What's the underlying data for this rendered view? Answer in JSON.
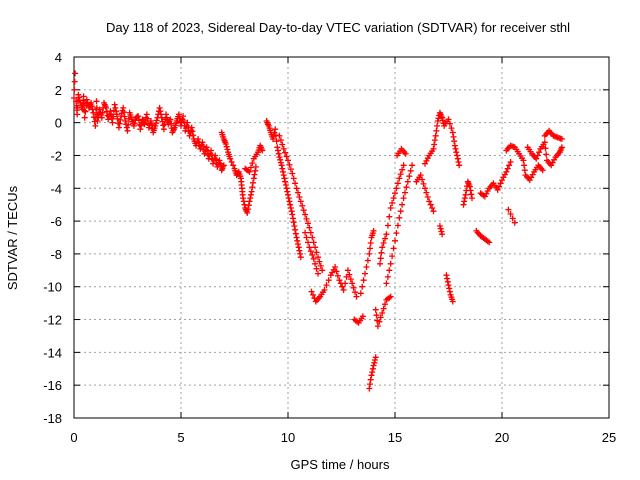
{
  "chart_data": {
    "type": "scatter",
    "title": "Day 118 of 2023, Sidereal Day-to-day VTEC variation (SDTVAR) for receiver sthl",
    "xlabel": "GPS time / hours",
    "ylabel": "SDTVAR / TECUs",
    "xlim": [
      0,
      25
    ],
    "ylim": [
      -18,
      4
    ],
    "xticks": [
      "0",
      "5",
      "10",
      "15",
      "20",
      "25"
    ],
    "yticks": [
      "4",
      "2",
      "0",
      "-2",
      "-4",
      "-6",
      "-8",
      "-10",
      "-12",
      "-14",
      "-16",
      "-18"
    ],
    "grid": true,
    "marker": "plus",
    "color": "#ff0000",
    "series": [
      {
        "name": "sthl",
        "points": [
          [
            0.0,
            1.5
          ],
          [
            0.05,
            3.0
          ],
          [
            0.1,
            1.3
          ],
          [
            0.15,
            0.5
          ],
          [
            0.2,
            1.7
          ],
          [
            0.3,
            1.2
          ],
          [
            0.4,
            0.8
          ],
          [
            0.45,
            1.6
          ],
          [
            0.5,
            0.3
          ],
          [
            0.6,
            1.4
          ],
          [
            0.7,
            0.9
          ],
          [
            0.8,
            1.2
          ],
          [
            0.9,
            0.6
          ],
          [
            1.0,
            -0.2
          ],
          [
            1.05,
            1.3
          ],
          [
            1.1,
            0.1
          ],
          [
            1.2,
            0.8
          ],
          [
            1.3,
            0.3
          ],
          [
            1.4,
            1.2
          ],
          [
            1.5,
            0.9
          ],
          [
            1.6,
            0.2
          ],
          [
            1.7,
            0.7
          ],
          [
            1.8,
            0.0
          ],
          [
            1.9,
            1.1
          ],
          [
            2.0,
            0.5
          ],
          [
            2.1,
            -0.3
          ],
          [
            2.2,
            0.4
          ],
          [
            2.3,
            0.9
          ],
          [
            2.4,
            0.1
          ],
          [
            2.5,
            -0.5
          ],
          [
            2.6,
            0.6
          ],
          [
            2.7,
            0.2
          ],
          [
            2.8,
            -0.2
          ],
          [
            2.9,
            0.3
          ],
          [
            3.0,
            0.4
          ],
          [
            3.1,
            -0.4
          ],
          [
            3.2,
            0.2
          ],
          [
            3.3,
            -0.1
          ],
          [
            3.4,
            0.5
          ],
          [
            3.5,
            -0.3
          ],
          [
            3.6,
            0.1
          ],
          [
            3.7,
            -0.6
          ],
          [
            3.8,
            -0.2
          ],
          [
            3.9,
            0.3
          ],
          [
            4.0,
            0.9
          ],
          [
            4.1,
            0.3
          ],
          [
            4.2,
            -0.4
          ],
          [
            4.3,
            0.5
          ],
          [
            4.4,
            -0.1
          ],
          [
            4.5,
            0.2
          ],
          [
            4.6,
            -0.6
          ],
          [
            4.7,
            -0.3
          ],
          [
            4.8,
            0.1
          ],
          [
            4.9,
            0.5
          ],
          [
            5.0,
            -0.2
          ],
          [
            5.1,
            0.4
          ],
          [
            5.2,
            -0.5
          ],
          [
            5.3,
            0.0
          ],
          [
            5.4,
            -0.8
          ],
          [
            5.5,
            -0.3
          ],
          [
            5.6,
            -1.0
          ],
          [
            5.7,
            -1.4
          ],
          [
            5.8,
            -1.0
          ],
          [
            5.9,
            -1.6
          ],
          [
            6.0,
            -1.2
          ],
          [
            6.1,
            -1.9
          ],
          [
            6.2,
            -1.5
          ],
          [
            6.3,
            -2.2
          ],
          [
            6.4,
            -1.7
          ],
          [
            6.5,
            -2.5
          ],
          [
            6.6,
            -2.0
          ],
          [
            6.7,
            -2.7
          ],
          [
            6.8,
            -2.3
          ],
          [
            6.9,
            -2.9
          ],
          [
            7.0,
            -2.6
          ],
          [
            6.9,
            -0.6
          ],
          [
            7.0,
            -1.0
          ],
          [
            7.1,
            -1.3
          ],
          [
            7.2,
            -1.8
          ],
          [
            7.3,
            -2.2
          ],
          [
            7.5,
            -2.8
          ],
          [
            7.6,
            -3.2
          ],
          [
            7.7,
            -3.0
          ],
          [
            7.8,
            -3.4
          ],
          [
            7.85,
            -4.0
          ],
          [
            7.9,
            -4.6
          ],
          [
            8.0,
            -5.2
          ],
          [
            8.1,
            -5.5
          ],
          [
            8.2,
            -4.8
          ],
          [
            8.3,
            -4.2
          ],
          [
            8.4,
            -3.4
          ],
          [
            8.5,
            -2.7
          ],
          [
            8.0,
            -2.8
          ],
          [
            8.2,
            -3.0
          ],
          [
            8.4,
            -2.2
          ],
          [
            8.6,
            -1.8
          ],
          [
            8.7,
            -1.4
          ],
          [
            8.8,
            -1.7
          ],
          [
            9.0,
            0.1
          ],
          [
            9.1,
            -0.2
          ],
          [
            9.2,
            -0.6
          ],
          [
            9.3,
            -1.0
          ],
          [
            9.4,
            -0.4
          ],
          [
            9.5,
            -1.5
          ],
          [
            9.6,
            -2.1
          ],
          [
            9.7,
            -2.6
          ],
          [
            9.8,
            -3.2
          ],
          [
            9.9,
            -3.8
          ],
          [
            10.0,
            -4.4
          ],
          [
            10.1,
            -5.0
          ],
          [
            10.2,
            -5.6
          ],
          [
            10.3,
            -6.3
          ],
          [
            10.4,
            -7.0
          ],
          [
            10.5,
            -7.6
          ],
          [
            10.6,
            -8.2
          ],
          [
            9.6,
            -0.8
          ],
          [
            9.8,
            -1.6
          ],
          [
            10.0,
            -2.3
          ],
          [
            10.2,
            -3.1
          ],
          [
            10.4,
            -4.0
          ],
          [
            10.6,
            -4.8
          ],
          [
            10.8,
            -5.6
          ],
          [
            11.0,
            -6.4
          ],
          [
            11.2,
            -7.3
          ],
          [
            11.4,
            -8.2
          ],
          [
            11.6,
            -9.0
          ],
          [
            10.8,
            -6.7
          ],
          [
            11.0,
            -7.6
          ],
          [
            11.2,
            -8.3
          ],
          [
            11.4,
            -9.2
          ],
          [
            11.1,
            -10.3
          ],
          [
            11.3,
            -10.9
          ],
          [
            11.5,
            -10.6
          ],
          [
            11.7,
            -10.2
          ],
          [
            12.0,
            -9.3
          ],
          [
            12.2,
            -8.8
          ],
          [
            12.4,
            -9.6
          ],
          [
            12.6,
            -10.2
          ],
          [
            12.8,
            -9.0
          ],
          [
            13.0,
            -9.8
          ],
          [
            13.2,
            -10.6
          ],
          [
            13.1,
            -12.0
          ],
          [
            13.3,
            -12.2
          ],
          [
            13.5,
            -11.8
          ],
          [
            13.4,
            -10.4
          ],
          [
            13.6,
            -9.2
          ],
          [
            13.8,
            -8.0
          ],
          [
            13.9,
            -7.0
          ],
          [
            14.0,
            -6.6
          ],
          [
            13.8,
            -16.2
          ],
          [
            13.9,
            -15.4
          ],
          [
            14.0,
            -14.8
          ],
          [
            14.1,
            -14.3
          ],
          [
            14.1,
            -11.4
          ],
          [
            14.2,
            -12.4
          ],
          [
            14.4,
            -11.6
          ],
          [
            14.6,
            -10.8
          ],
          [
            14.8,
            -10.6
          ],
          [
            14.3,
            -8.6
          ],
          [
            14.4,
            -7.6
          ],
          [
            14.6,
            -6.8
          ],
          [
            14.8,
            -5.2
          ],
          [
            15.0,
            -4.3
          ],
          [
            15.2,
            -3.4
          ],
          [
            15.4,
            -2.6
          ],
          [
            14.6,
            -9.8
          ],
          [
            14.8,
            -8.6
          ],
          [
            15.0,
            -7.2
          ],
          [
            15.2,
            -5.8
          ],
          [
            15.4,
            -4.6
          ],
          [
            15.6,
            -3.6
          ],
          [
            15.8,
            -2.6
          ],
          [
            15.1,
            -2.0
          ],
          [
            15.3,
            -1.6
          ],
          [
            15.5,
            -1.9
          ],
          [
            16.0,
            -3.6
          ],
          [
            16.2,
            -3.2
          ],
          [
            16.4,
            -4.0
          ],
          [
            16.6,
            -4.8
          ],
          [
            16.8,
            -5.4
          ],
          [
            16.4,
            -2.5
          ],
          [
            16.6,
            -2.0
          ],
          [
            16.8,
            -1.6
          ],
          [
            16.9,
            -0.8
          ],
          [
            17.0,
            0.1
          ],
          [
            17.1,
            0.6
          ],
          [
            17.2,
            0.3
          ],
          [
            17.3,
            -0.2
          ],
          [
            17.5,
            0.2
          ],
          [
            17.7,
            -0.6
          ],
          [
            17.8,
            -1.4
          ],
          [
            17.9,
            -2.0
          ],
          [
            18.0,
            -2.6
          ],
          [
            17.1,
            -6.3
          ],
          [
            17.2,
            -6.8
          ],
          [
            17.4,
            -9.3
          ],
          [
            17.5,
            -9.9
          ],
          [
            17.6,
            -10.5
          ],
          [
            17.7,
            -10.9
          ],
          [
            18.2,
            -5.0
          ],
          [
            18.3,
            -4.4
          ],
          [
            18.4,
            -3.6
          ],
          [
            18.5,
            -3.9
          ],
          [
            18.6,
            -4.6
          ],
          [
            18.8,
            -6.6
          ],
          [
            19.0,
            -6.9
          ],
          [
            19.2,
            -7.1
          ],
          [
            19.4,
            -7.3
          ],
          [
            19.0,
            -4.3
          ],
          [
            19.2,
            -4.5
          ],
          [
            19.4,
            -4.0
          ],
          [
            19.6,
            -3.7
          ],
          [
            19.8,
            -4.1
          ],
          [
            20.0,
            -3.5
          ],
          [
            20.2,
            -3.0
          ],
          [
            20.4,
            -2.4
          ],
          [
            20.3,
            -5.3
          ],
          [
            20.6,
            -6.1
          ],
          [
            20.2,
            -1.7
          ],
          [
            20.4,
            -1.4
          ],
          [
            20.6,
            -1.5
          ],
          [
            20.8,
            -1.9
          ],
          [
            21.0,
            -2.3
          ],
          [
            21.1,
            -3.2
          ],
          [
            21.3,
            -3.5
          ],
          [
            21.5,
            -3.0
          ],
          [
            21.7,
            -2.6
          ],
          [
            21.9,
            -2.9
          ],
          [
            21.2,
            -1.5
          ],
          [
            21.4,
            -1.9
          ],
          [
            21.6,
            -2.2
          ],
          [
            21.8,
            -1.6
          ],
          [
            22.0,
            -1.2
          ],
          [
            22.1,
            -2.3
          ],
          [
            22.3,
            -2.6
          ],
          [
            22.5,
            -2.1
          ],
          [
            22.7,
            -1.8
          ],
          [
            22.8,
            -1.5
          ],
          [
            22.0,
            -0.8
          ],
          [
            22.2,
            -0.5
          ],
          [
            22.4,
            -0.8
          ],
          [
            22.6,
            -0.9
          ],
          [
            22.8,
            -1.0
          ]
        ]
      }
    ]
  }
}
